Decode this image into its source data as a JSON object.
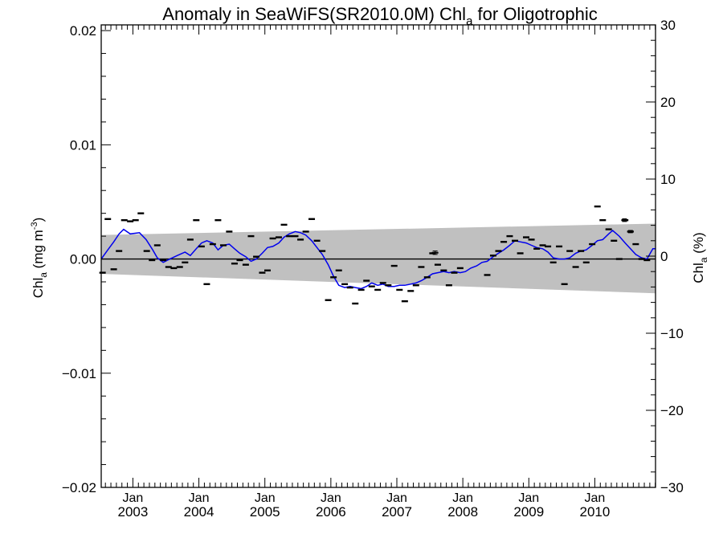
{
  "chart_data": {
    "type": "scatter",
    "title": "Anomaly in SeaWiFS(SR2010.0M) Chl",
    "title_sub": "a",
    "title_suffix": " for Oligotrophic",
    "ylabel_left": {
      "base": "Chl",
      "sub": "a",
      "mid": " (mg m",
      "sup": "-3",
      "end": ")"
    },
    "ylabel_right": {
      "base": "Chl",
      "sub": "a",
      "end": " (%)"
    },
    "ylim_left": [
      -0.02,
      0.0205
    ],
    "ylim_right": [
      -30,
      30
    ],
    "xlim": [
      2002.52,
      2010.92
    ],
    "yticks_left": [
      {
        "v": 0.02,
        "label": "0.02"
      },
      {
        "v": 0.01,
        "label": "0.01"
      },
      {
        "v": 0.0,
        "label": "0.00"
      },
      {
        "v": -0.01,
        "label": "−0.01"
      },
      {
        "v": -0.02,
        "label": "−0.02"
      }
    ],
    "yticks_right": [
      {
        "v": 30,
        "label": "30"
      },
      {
        "v": 20,
        "label": "20"
      },
      {
        "v": 10,
        "label": "10"
      },
      {
        "v": 0,
        "label": "0"
      },
      {
        "v": -10,
        "label": "−10"
      },
      {
        "v": -20,
        "label": "−20"
      },
      {
        "v": -30,
        "label": "−30"
      }
    ],
    "xticks": [
      {
        "x": 2003.0,
        "month": "Jan",
        "year": "2003"
      },
      {
        "x": 2004.0,
        "month": "Jan",
        "year": "2004"
      },
      {
        "x": 2005.0,
        "month": "Jan",
        "year": "2005"
      },
      {
        "x": 2006.0,
        "month": "Jan",
        "year": "2006"
      },
      {
        "x": 2007.0,
        "month": "Jan",
        "year": "2007"
      },
      {
        "x": 2008.0,
        "month": "Jan",
        "year": "2008"
      },
      {
        "x": 2009.0,
        "month": "Jan",
        "year": "2009"
      },
      {
        "x": 2010.0,
        "month": "Jan",
        "year": "2010"
      }
    ],
    "zero_line": 0.0,
    "uncertainty_band": {
      "x": [
        2002.52,
        2010.92
      ],
      "upper": [
        0.0021,
        0.0031
      ],
      "lower": [
        -0.0013,
        -0.003
      ],
      "color": "#c0c0c0"
    },
    "series": [
      {
        "kind": "monthly_anomaly",
        "color": "#000000",
        "points": [
          {
            "x": 2002.54,
            "y": -0.0012
          },
          {
            "x": 2002.62,
            "y": 0.0035
          },
          {
            "x": 2002.71,
            "y": -0.0009
          },
          {
            "x": 2002.79,
            "y": 0.0007
          },
          {
            "x": 2002.87,
            "y": 0.0034
          },
          {
            "x": 2002.96,
            "y": 0.0033
          },
          {
            "x": 2003.04,
            "y": 0.0034
          },
          {
            "x": 2003.12,
            "y": 0.004
          },
          {
            "x": 2003.21,
            "y": 0.0007
          },
          {
            "x": 2003.29,
            "y": -0.0001
          },
          {
            "x": 2003.37,
            "y": 0.0012
          },
          {
            "x": 2003.46,
            "y": -0.0001
          },
          {
            "x": 2003.54,
            "y": -0.0007
          },
          {
            "x": 2003.62,
            "y": -0.0008
          },
          {
            "x": 2003.71,
            "y": -0.0007
          },
          {
            "x": 2003.79,
            "y": -0.0003
          },
          {
            "x": 2003.87,
            "y": 0.0017
          },
          {
            "x": 2003.96,
            "y": 0.0034
          },
          {
            "x": 2004.04,
            "y": 0.0011
          },
          {
            "x": 2004.12,
            "y": -0.0022
          },
          {
            "x": 2004.21,
            "y": 0.0013
          },
          {
            "x": 2004.29,
            "y": 0.0034
          },
          {
            "x": 2004.37,
            "y": 0.0012
          },
          {
            "x": 2004.46,
            "y": 0.0024
          },
          {
            "x": 2004.54,
            "y": -0.0004
          },
          {
            "x": 2004.62,
            "y": -0.0001
          },
          {
            "x": 2004.71,
            "y": -0.0005
          },
          {
            "x": 2004.79,
            "y": 0.002
          },
          {
            "x": 2004.87,
            "y": 0.0002
          },
          {
            "x": 2004.96,
            "y": -0.0012
          },
          {
            "x": 2005.04,
            "y": -0.001
          },
          {
            "x": 2005.12,
            "y": 0.0018
          },
          {
            "x": 2005.21,
            "y": 0.0019
          },
          {
            "x": 2005.29,
            "y": 0.003
          },
          {
            "x": 2005.37,
            "y": 0.002
          },
          {
            "x": 2005.46,
            "y": 0.002
          },
          {
            "x": 2005.54,
            "y": 0.0017
          },
          {
            "x": 2005.62,
            "y": 0.0024
          },
          {
            "x": 2005.71,
            "y": 0.0035
          },
          {
            "x": 2005.79,
            "y": 0.0016
          },
          {
            "x": 2005.87,
            "y": 0.0007
          },
          {
            "x": 2005.96,
            "y": -0.0036
          },
          {
            "x": 2006.04,
            "y": -0.0016
          },
          {
            "x": 2006.12,
            "y": -0.001
          },
          {
            "x": 2006.21,
            "y": -0.0022
          },
          {
            "x": 2006.29,
            "y": -0.0025
          },
          {
            "x": 2006.37,
            "y": -0.0039
          },
          {
            "x": 2006.46,
            "y": -0.0027
          },
          {
            "x": 2006.54,
            "y": -0.0019
          },
          {
            "x": 2006.62,
            "y": -0.0024
          },
          {
            "x": 2006.71,
            "y": -0.0027
          },
          {
            "x": 2006.79,
            "y": -0.0021
          },
          {
            "x": 2006.87,
            "y": -0.0023
          },
          {
            "x": 2006.96,
            "y": -0.0006
          },
          {
            "x": 2007.04,
            "y": -0.0027
          },
          {
            "x": 2007.12,
            "y": -0.0037
          },
          {
            "x": 2007.21,
            "y": -0.0028
          },
          {
            "x": 2007.29,
            "y": -0.0023
          },
          {
            "x": 2007.37,
            "y": -0.0007
          },
          {
            "x": 2007.46,
            "y": -0.0016
          },
          {
            "x": 2007.54,
            "y": 0.0005
          },
          {
            "x": 2007.62,
            "y": -0.0005
          },
          {
            "x": 2007.71,
            "y": -0.001
          },
          {
            "x": 2007.79,
            "y": -0.0023
          },
          {
            "x": 2007.87,
            "y": -0.0012
          },
          {
            "x": 2007.96,
            "y": -0.0008
          },
          {
            "x": 2008.37,
            "y": -0.0014
          },
          {
            "x": 2008.46,
            "y": 0.0003
          },
          {
            "x": 2008.54,
            "y": 0.0007
          },
          {
            "x": 2008.62,
            "y": 0.0015
          },
          {
            "x": 2008.71,
            "y": 0.002
          },
          {
            "x": 2008.79,
            "y": 0.0016
          },
          {
            "x": 2008.87,
            "y": 0.0005
          },
          {
            "x": 2008.96,
            "y": 0.0019
          },
          {
            "x": 2009.04,
            "y": 0.0017
          },
          {
            "x": 2009.12,
            "y": 0.0009
          },
          {
            "x": 2009.21,
            "y": 0.0012
          },
          {
            "x": 2009.29,
            "y": 0.0011
          },
          {
            "x": 2009.37,
            "y": -0.0003
          },
          {
            "x": 2009.46,
            "y": 0.0011
          },
          {
            "x": 2009.54,
            "y": -0.0022
          },
          {
            "x": 2009.62,
            "y": 0.0007
          },
          {
            "x": 2009.71,
            "y": -0.0007
          },
          {
            "x": 2009.79,
            "y": 0.0007
          },
          {
            "x": 2009.87,
            "y": -0.0003
          },
          {
            "x": 2009.96,
            "y": 0.0013
          },
          {
            "x": 2010.04,
            "y": 0.0046
          },
          {
            "x": 2010.12,
            "y": 0.0034
          },
          {
            "x": 2010.21,
            "y": 0.0026
          },
          {
            "x": 2010.29,
            "y": 0.0016
          },
          {
            "x": 2010.37,
            "y": 0.0
          },
          {
            "x": 2010.46,
            "y": 0.0034
          },
          {
            "x": 2010.54,
            "y": 0.0024
          },
          {
            "x": 2010.62,
            "y": 0.0013
          },
          {
            "x": 2010.71,
            "y": 0.0
          },
          {
            "x": 2010.79,
            "y": -0.0001
          }
        ]
      },
      {
        "kind": "running_mean",
        "color": "#0000ee",
        "points": [
          {
            "x": 2002.52,
            "y": 0.0
          },
          {
            "x": 2002.62,
            "y": 0.0008
          },
          {
            "x": 2002.71,
            "y": 0.0015
          },
          {
            "x": 2002.79,
            "y": 0.0022
          },
          {
            "x": 2002.86,
            "y": 0.0026
          },
          {
            "x": 2002.96,
            "y": 0.0022
          },
          {
            "x": 2003.1,
            "y": 0.0023
          },
          {
            "x": 2003.2,
            "y": 0.0017
          },
          {
            "x": 2003.3,
            "y": 0.0008
          },
          {
            "x": 2003.37,
            "y": 0.0001
          },
          {
            "x": 2003.46,
            "y": -0.0003
          },
          {
            "x": 2003.56,
            "y": 0.0
          },
          {
            "x": 2003.67,
            "y": 0.0003
          },
          {
            "x": 2003.79,
            "y": 0.0006
          },
          {
            "x": 2003.87,
            "y": 0.0003
          },
          {
            "x": 2003.96,
            "y": 0.0009
          },
          {
            "x": 2004.04,
            "y": 0.0014
          },
          {
            "x": 2004.12,
            "y": 0.0016
          },
          {
            "x": 2004.21,
            "y": 0.0014
          },
          {
            "x": 2004.29,
            "y": 0.0008
          },
          {
            "x": 2004.37,
            "y": 0.0012
          },
          {
            "x": 2004.46,
            "y": 0.0013
          },
          {
            "x": 2004.54,
            "y": 0.0009
          },
          {
            "x": 2004.62,
            "y": 0.0005
          },
          {
            "x": 2004.71,
            "y": 0.0002
          },
          {
            "x": 2004.79,
            "y": -0.0002
          },
          {
            "x": 2004.87,
            "y": 0.0
          },
          {
            "x": 2004.96,
            "y": 0.0005
          },
          {
            "x": 2005.04,
            "y": 0.001
          },
          {
            "x": 2005.12,
            "y": 0.0011
          },
          {
            "x": 2005.21,
            "y": 0.0014
          },
          {
            "x": 2005.29,
            "y": 0.0019
          },
          {
            "x": 2005.37,
            "y": 0.0022
          },
          {
            "x": 2005.46,
            "y": 0.0024
          },
          {
            "x": 2005.54,
            "y": 0.0023
          },
          {
            "x": 2005.62,
            "y": 0.0021
          },
          {
            "x": 2005.71,
            "y": 0.0016
          },
          {
            "x": 2005.79,
            "y": 0.001
          },
          {
            "x": 2005.87,
            "y": 0.0004
          },
          {
            "x": 2005.96,
            "y": -0.0005
          },
          {
            "x": 2006.04,
            "y": -0.0015
          },
          {
            "x": 2006.12,
            "y": -0.0023
          },
          {
            "x": 2006.21,
            "y": -0.0025
          },
          {
            "x": 2006.29,
            "y": -0.0024
          },
          {
            "x": 2006.37,
            "y": -0.0025
          },
          {
            "x": 2006.46,
            "y": -0.0026
          },
          {
            "x": 2006.54,
            "y": -0.0024
          },
          {
            "x": 2006.62,
            "y": -0.0021
          },
          {
            "x": 2006.71,
            "y": -0.0023
          },
          {
            "x": 2006.79,
            "y": -0.0022
          },
          {
            "x": 2006.87,
            "y": -0.0024
          },
          {
            "x": 2006.96,
            "y": -0.0024
          },
          {
            "x": 2007.04,
            "y": -0.0023
          },
          {
            "x": 2007.12,
            "y": -0.0023
          },
          {
            "x": 2007.21,
            "y": -0.0022
          },
          {
            "x": 2007.29,
            "y": -0.0021
          },
          {
            "x": 2007.37,
            "y": -0.0019
          },
          {
            "x": 2007.46,
            "y": -0.0016
          },
          {
            "x": 2007.54,
            "y": -0.0013
          },
          {
            "x": 2007.62,
            "y": -0.0012
          },
          {
            "x": 2007.71,
            "y": -0.0011
          },
          {
            "x": 2007.79,
            "y": -0.0012
          },
          {
            "x": 2007.87,
            "y": -0.0011
          },
          {
            "x": 2007.96,
            "y": -0.0012
          },
          {
            "x": 2008.04,
            "y": -0.0011
          },
          {
            "x": 2008.12,
            "y": -0.0008
          },
          {
            "x": 2008.21,
            "y": -0.0006
          },
          {
            "x": 2008.29,
            "y": -0.0003
          },
          {
            "x": 2008.37,
            "y": -0.0002
          },
          {
            "x": 2008.46,
            "y": 0.0002
          },
          {
            "x": 2008.54,
            "y": 0.0005
          },
          {
            "x": 2008.62,
            "y": 0.0008
          },
          {
            "x": 2008.71,
            "y": 0.0012
          },
          {
            "x": 2008.79,
            "y": 0.0016
          },
          {
            "x": 2008.87,
            "y": 0.0015
          },
          {
            "x": 2008.96,
            "y": 0.0014
          },
          {
            "x": 2009.04,
            "y": 0.0012
          },
          {
            "x": 2009.12,
            "y": 0.001
          },
          {
            "x": 2009.21,
            "y": 0.0009
          },
          {
            "x": 2009.29,
            "y": 0.0006
          },
          {
            "x": 2009.37,
            "y": 0.0001
          },
          {
            "x": 2009.46,
            "y": 0.0
          },
          {
            "x": 2009.54,
            "y": 0.0
          },
          {
            "x": 2009.62,
            "y": 0.0001
          },
          {
            "x": 2009.71,
            "y": 0.0005
          },
          {
            "x": 2009.79,
            "y": 0.0007
          },
          {
            "x": 2009.87,
            "y": 0.0008
          },
          {
            "x": 2009.96,
            "y": 0.0012
          },
          {
            "x": 2010.04,
            "y": 0.0016
          },
          {
            "x": 2010.12,
            "y": 0.0017
          },
          {
            "x": 2010.21,
            "y": 0.0022
          },
          {
            "x": 2010.27,
            "y": 0.0025
          },
          {
            "x": 2010.37,
            "y": 0.002
          },
          {
            "x": 2010.46,
            "y": 0.0014
          },
          {
            "x": 2010.54,
            "y": 0.0009
          },
          {
            "x": 2010.62,
            "y": 0.0004
          },
          {
            "x": 2010.71,
            "y": 0.0001
          },
          {
            "x": 2010.79,
            "y": 0.0
          },
          {
            "x": 2010.88,
            "y": 0.0009
          },
          {
            "x": 2010.92,
            "y": 0.0009
          }
        ]
      }
    ],
    "error_bar_points": [
      {
        "x": 2007.58,
        "y": 0.00055,
        "err": 0.00015
      },
      {
        "x": 2010.45,
        "y": 0.0034,
        "err": 0.00012
      },
      {
        "x": 2010.54,
        "y": 0.0024,
        "err": 0.0001
      }
    ],
    "grid": false,
    "legend": "none"
  }
}
